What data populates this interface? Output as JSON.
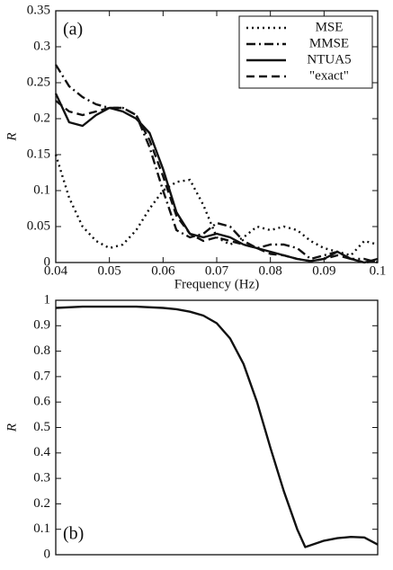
{
  "chart_data": [
    {
      "type": "line",
      "panel_label": "(a)",
      "xlabel": "Frequency (Hz)",
      "ylabel": "R",
      "xlim": [
        0.04,
        0.1
      ],
      "ylim": [
        0,
        0.35
      ],
      "xticks": [
        0.04,
        0.05,
        0.06,
        0.07,
        0.08,
        0.09,
        0.1
      ],
      "yticks": [
        0,
        0.05,
        0.1,
        0.15,
        0.2,
        0.25,
        0.3,
        0.35
      ],
      "legend": "upper right",
      "x": [
        0.04,
        0.0425,
        0.045,
        0.0475,
        0.05,
        0.0525,
        0.055,
        0.0575,
        0.06,
        0.0625,
        0.065,
        0.0675,
        0.07,
        0.0725,
        0.075,
        0.0775,
        0.08,
        0.0825,
        0.085,
        0.0875,
        0.09,
        0.0925,
        0.095,
        0.0975,
        0.1
      ],
      "series": [
        {
          "name": "MSE",
          "color": "#111111",
          "style": "dotted",
          "values": [
            0.15,
            0.09,
            0.05,
            0.03,
            0.02,
            0.025,
            0.045,
            0.075,
            0.1,
            0.112,
            0.115,
            0.08,
            0.035,
            0.025,
            0.035,
            0.05,
            0.045,
            0.05,
            0.045,
            0.03,
            0.02,
            0.015,
            0.01,
            0.03,
            0.025
          ]
        },
        {
          "name": "MMSE",
          "color": "#111111",
          "style": "dashdot",
          "values": [
            0.275,
            0.245,
            0.23,
            0.22,
            0.215,
            0.215,
            0.205,
            0.16,
            0.1,
            0.045,
            0.035,
            0.04,
            0.055,
            0.05,
            0.03,
            0.02,
            0.025,
            0.025,
            0.02,
            0.005,
            0.01,
            0.015,
            0.005,
            0.005,
            0
          ]
        },
        {
          "name": "NTUA5",
          "color": "#111111",
          "style": "solid",
          "values": [
            0.235,
            0.195,
            0.19,
            0.205,
            0.215,
            0.21,
            0.2,
            0.18,
            0.13,
            0.07,
            0.04,
            0.035,
            0.04,
            0.035,
            0.025,
            0.02,
            0.015,
            0.01,
            0.005,
            0.002,
            0.005,
            0.015,
            0.005,
            0,
            0.005
          ]
        },
        {
          "name": "\"exact\"",
          "color": "#111111",
          "style": "dashed",
          "values": [
            0.225,
            0.21,
            0.205,
            0.21,
            0.215,
            0.215,
            0.205,
            0.17,
            0.12,
            0.065,
            0.04,
            0.03,
            0.035,
            0.03,
            0.025,
            0.02,
            0.012,
            0.01,
            0.005,
            0.002,
            0.005,
            0.01,
            0.005,
            0,
            0.002
          ]
        }
      ]
    },
    {
      "type": "line",
      "panel_label": "(b)",
      "ylabel": "R",
      "xlim": [
        0.04,
        0.1
      ],
      "ylim": [
        0,
        1
      ],
      "yticks": [
        0,
        0.1,
        0.2,
        0.3,
        0.4,
        0.5,
        0.6,
        0.7,
        0.8,
        0.9,
        1
      ],
      "x": [
        0.04,
        0.045,
        0.05,
        0.055,
        0.06,
        0.0625,
        0.065,
        0.0675,
        0.07,
        0.0725,
        0.075,
        0.0775,
        0.08,
        0.0825,
        0.085,
        0.0865,
        0.09,
        0.0925,
        0.095,
        0.0975,
        0.1
      ],
      "series": [
        {
          "color": "#111111",
          "style": "solid",
          "values": [
            0.97,
            0.975,
            0.975,
            0.975,
            0.97,
            0.965,
            0.955,
            0.94,
            0.91,
            0.85,
            0.75,
            0.6,
            0.42,
            0.25,
            0.1,
            0.03,
            0.055,
            0.065,
            0.07,
            0.068,
            0.04
          ]
        }
      ]
    }
  ]
}
